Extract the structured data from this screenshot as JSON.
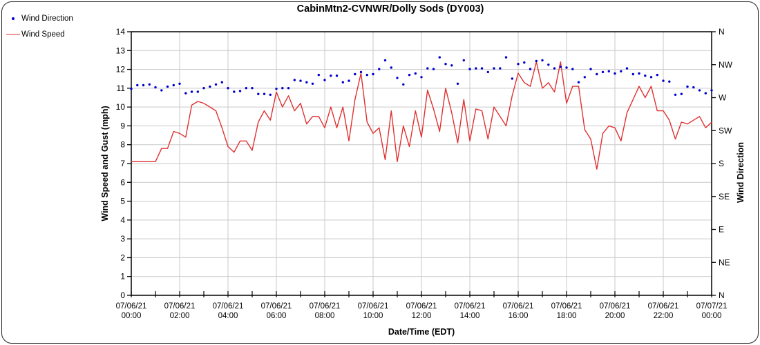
{
  "title": "CabinMtn2-CVNWR/Dolly Sods (DY003)",
  "legend": [
    {
      "label": "Wind Direction",
      "marker": "dot",
      "color": "#0000cc"
    },
    {
      "label": "Wind Speed",
      "marker": "line",
      "color": "#e03030"
    }
  ],
  "axes": {
    "left_title": "Wind Speed and Gust (mph)",
    "right_title": "Wind Direction",
    "x_title": "Date/Time (EDT)"
  },
  "colors": {
    "grid": "#c9c9c9",
    "axis": "#000000",
    "speed_line": "#e03030",
    "direction_dot": "#0000cc",
    "text": "#000000"
  },
  "chart_data": {
    "type": "line+scatter",
    "title": "CabinMtn2-CVNWR/Dolly Sods (DY003)",
    "xlabel": "Date/Time (EDT)",
    "ylabel_left": "Wind Speed and Gust (mph)",
    "ylabel_right": "Wind Direction",
    "ylim_left": [
      0,
      14
    ],
    "ytick_step_left": 1,
    "right_axis_deg_range": [
      0,
      360
    ],
    "right_tick_labels_bottom_to_top": [
      "N",
      "NE",
      "E",
      "SE",
      "S",
      "SW",
      "W",
      "NW",
      "N"
    ],
    "grid": "on",
    "legend_position": "top-left",
    "x_hours_range": [
      0,
      24
    ],
    "x_major_tick_hours": 2,
    "x_minor_tick_hours": 1,
    "x_ticks": [
      {
        "date": "07/06/21",
        "time": "00:00"
      },
      {
        "date": "07/06/21",
        "time": "02:00"
      },
      {
        "date": "07/06/21",
        "time": "04:00"
      },
      {
        "date": "07/06/21",
        "time": "06:00"
      },
      {
        "date": "07/06/21",
        "time": "08:00"
      },
      {
        "date": "07/06/21",
        "time": "10:00"
      },
      {
        "date": "07/06/21",
        "time": "12:00"
      },
      {
        "date": "07/06/21",
        "time": "14:00"
      },
      {
        "date": "07/06/21",
        "time": "16:00"
      },
      {
        "date": "07/06/21",
        "time": "18:00"
      },
      {
        "date": "07/06/21",
        "time": "20:00"
      },
      {
        "date": "07/06/21",
        "time": "22:00"
      },
      {
        "date": "07/07/21",
        "time": "00:00"
      }
    ],
    "sample_interval_minutes": 15,
    "series": [
      {
        "name": "Wind Speed",
        "type": "line",
        "units": "mph",
        "color": "#e03030",
        "values": [
          7.1,
          7.1,
          7.1,
          7.1,
          7.1,
          7.8,
          7.8,
          8.7,
          8.6,
          8.4,
          10.1,
          10.3,
          10.2,
          10.0,
          9.8,
          8.9,
          7.9,
          7.6,
          8.2,
          8.2,
          7.7,
          9.2,
          9.8,
          9.3,
          10.8,
          10.0,
          10.6,
          9.8,
          10.2,
          9.1,
          9.5,
          9.5,
          8.9,
          10.0,
          8.9,
          10.0,
          8.2,
          10.4,
          11.8,
          9.2,
          8.6,
          8.9,
          7.2,
          9.8,
          7.1,
          9.0,
          7.9,
          9.8,
          8.4,
          10.9,
          9.9,
          8.7,
          11.0,
          9.7,
          8.1,
          10.4,
          8.2,
          9.9,
          9.8,
          8.3,
          10.0,
          9.5,
          9.0,
          10.6,
          11.8,
          11.3,
          11.1,
          12.4,
          11.0,
          11.3,
          10.8,
          12.4,
          10.2,
          11.1,
          11.1,
          8.8,
          8.3,
          6.7,
          8.6,
          9.0,
          8.9,
          8.2,
          9.7,
          10.4,
          11.1,
          10.5,
          11.1,
          9.8,
          9.8,
          9.3,
          8.3,
          9.2,
          9.1,
          9.3,
          9.5,
          8.9,
          9.2
        ]
      },
      {
        "name": "Wind Direction",
        "type": "scatter",
        "units": "degrees",
        "color": "#0000cc",
        "values": [
          282,
          287,
          287,
          288,
          284,
          280,
          285,
          287,
          289,
          276,
          278,
          278,
          283,
          285,
          288,
          291,
          283,
          278,
          279,
          283,
          283,
          275,
          275,
          274,
          282,
          283,
          283,
          294,
          293,
          291,
          289,
          301,
          294,
          300,
          300,
          291,
          293,
          302,
          305,
          301,
          302,
          309,
          321,
          311,
          297,
          288,
          301,
          303,
          298,
          310,
          309,
          325,
          316,
          314,
          289,
          321,
          309,
          310,
          310,
          305,
          310,
          310,
          325,
          296,
          316,
          318,
          309,
          320,
          321,
          315,
          310,
          312,
          311,
          309,
          291,
          298,
          309,
          302,
          305,
          306,
          303,
          306,
          310,
          302,
          303,
          300,
          298,
          301,
          293,
          292,
          274,
          275,
          285,
          284,
          280,
          276,
          280
        ]
      }
    ]
  }
}
